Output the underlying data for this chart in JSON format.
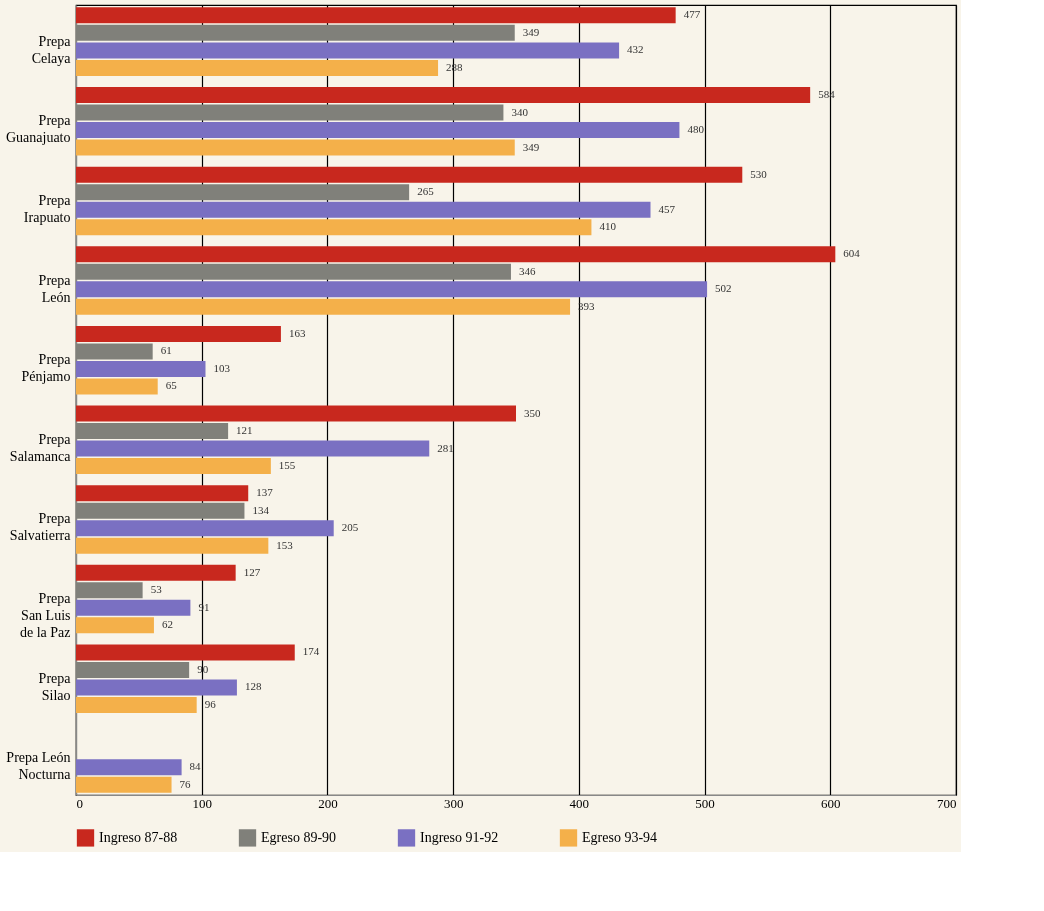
{
  "chart_data": {
    "type": "bar",
    "orientation": "horizontal",
    "categories": [
      "Prepa\nCelaya",
      "Prepa\nGuanajuato",
      "Prepa\nIrapuato",
      "Prepa\nLeón",
      "Prepa\nPénjamo",
      "Prepa\nSalamanca",
      "Prepa\nSalvatierra",
      "Prepa\nSan Luis\nde la Paz",
      "Prepa\nSilao",
      "Prepa León\nNocturna"
    ],
    "series": [
      {
        "name": "Ingreso 87-88",
        "color": "#c8281e",
        "values": [
          477,
          584,
          530,
          604,
          163,
          350,
          137,
          127,
          174,
          null
        ]
      },
      {
        "name": "Egreso 89-90",
        "color": "#80807a",
        "values": [
          349,
          340,
          265,
          346,
          61,
          121,
          134,
          53,
          90,
          null
        ]
      },
      {
        "name": "Ingreso 91-92",
        "color": "#7a70c2",
        "values": [
          432,
          480,
          457,
          502,
          103,
          281,
          205,
          91,
          128,
          84
        ]
      },
      {
        "name": "Egreso 93-94",
        "color": "#f4b04a",
        "values": [
          288,
          349,
          410,
          393,
          65,
          155,
          153,
          62,
          96,
          76
        ]
      }
    ],
    "xlim": [
      0,
      700
    ],
    "xticks": [
      0,
      100,
      200,
      300,
      400,
      500,
      600,
      700
    ],
    "grid": "x",
    "legend": "bottom",
    "data_labels": true
  }
}
